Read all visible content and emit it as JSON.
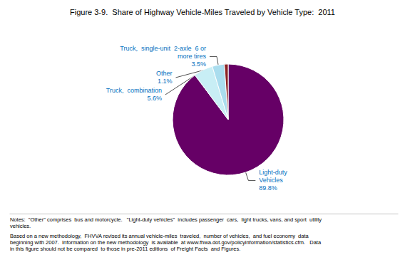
{
  "chart_data": {
    "type": "pie",
    "title": "Figure 3-9.  Share of Highway Vehicle-Miles Traveled by Vehicle Type:  2011",
    "values": [
      89.8,
      5.6,
      3.5,
      1.1
    ],
    "value_labels": [
      "Light-duty\nVehicles\n89.8%",
      "Truck,  combination\n5.6%",
      "Truck,  single-unit  2-axle  6 or\nmore tires\n3.5%",
      "Other\n1.1%"
    ],
    "colors": [
      "#660066",
      "#C8EEF5",
      "#AADDEE",
      "#8B2222"
    ],
    "data_labels": true,
    "annotations": [
      "Notes:  \"Other\" comprises  bus and motorcycle.   \"Light-duty vehicles\"  includes passenger  cars,  light trucks, vans, and sport  utility\nvehicles.",
      "Based on a new methodology,  FHVVA revised its annual vehicle-miles  traveled,  number of vehicles,  and fuel economy  data\nbeginning with 2007.  Information on the new methodology  is available  at www.fhwa.dot.gov/policyinformation/statistics.cfm.   Data\nin this figure should not be compared  to those in pre-2011 editions  of Freight Facts  and Figures."
    ]
  }
}
